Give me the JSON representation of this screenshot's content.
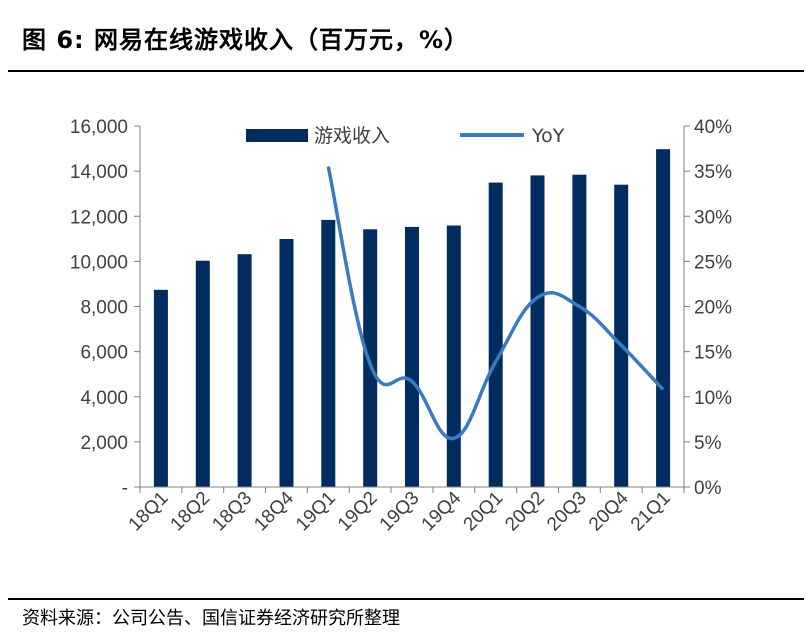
{
  "header": {
    "title": "图 6:  网易在线游戏收入（百万元，%）"
  },
  "footer": {
    "source": "资料来源：公司公告、国信证券经济研究所整理"
  },
  "chart_data": {
    "type": "bar",
    "categories": [
      "18Q1",
      "18Q2",
      "18Q3",
      "18Q4",
      "19Q1",
      "19Q2",
      "19Q3",
      "19Q4",
      "20Q1",
      "20Q2",
      "20Q3",
      "20Q4",
      "21Q1"
    ],
    "series": [
      {
        "name": "游戏收入",
        "type": "bar",
        "axis": "left",
        "color": "#002c5f",
        "values": [
          8740,
          10030,
          10320,
          10990,
          11840,
          11420,
          11530,
          11590,
          13490,
          13810,
          13840,
          13400,
          14970
        ]
      },
      {
        "name": "YoY",
        "type": "line",
        "axis": "right",
        "color": "#3a7bbf",
        "values": [
          null,
          null,
          null,
          null,
          0.355,
          0.136,
          0.117,
          0.054,
          0.139,
          0.21,
          0.2,
          0.157,
          0.108
        ]
      }
    ],
    "y_left": {
      "min": 0,
      "max": 16000,
      "ticks": [
        "-",
        "2,000",
        "4,000",
        "6,000",
        "8,000",
        "10,000",
        "12,000",
        "14,000",
        "16,000"
      ]
    },
    "y_right": {
      "min": 0,
      "max": 0.4,
      "ticks": [
        "0%",
        "5%",
        "10%",
        "15%",
        "20%",
        "25%",
        "30%",
        "35%",
        "40%"
      ]
    },
    "legend": {
      "placement": "top"
    }
  }
}
